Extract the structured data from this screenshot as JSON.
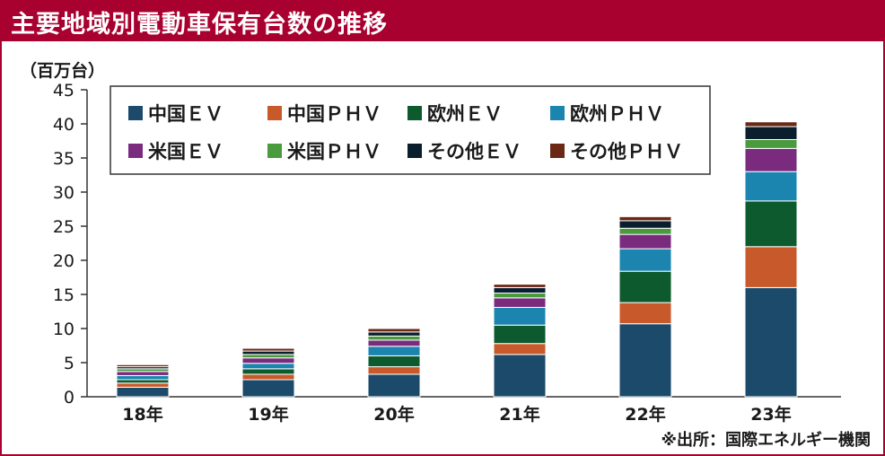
{
  "header": {
    "title": "主要地域別電動車保有台数の推移",
    "unit": "（百万台）",
    "source": "※出所：国際エネルギー機関"
  },
  "chart_data": {
    "type": "bar",
    "stacked": true,
    "title": "主要地域別電動車保有台数の推移",
    "ylabel": "（百万台）",
    "ylim": [
      0,
      45
    ],
    "yticks": [
      0,
      5,
      10,
      15,
      20,
      25,
      30,
      35,
      40,
      45
    ],
    "categories": [
      "18年",
      "19年",
      "20年",
      "21年",
      "22年",
      "23年"
    ],
    "series": [
      {
        "name": "中国ＥＶ",
        "color": "#1c4a6b",
        "values": [
          1.4,
          2.5,
          3.3,
          6.2,
          10.7,
          16.0
        ]
      },
      {
        "name": "中国ＰＨＶ",
        "color": "#c8592a",
        "values": [
          0.6,
          0.8,
          1.1,
          1.6,
          3.1,
          6.0
        ]
      },
      {
        "name": "欧州ＥＶ",
        "color": "#0d5a2e",
        "values": [
          0.5,
          0.8,
          1.6,
          2.7,
          4.6,
          6.7
        ]
      },
      {
        "name": "欧州ＰＨＶ",
        "color": "#1b85b0",
        "values": [
          0.6,
          0.8,
          1.4,
          2.6,
          3.3,
          4.3
        ]
      },
      {
        "name": "米国ＥＶ",
        "color": "#7a2b7e",
        "values": [
          0.6,
          0.8,
          0.9,
          1.4,
          2.1,
          3.4
        ]
      },
      {
        "name": "米国ＰＨＶ",
        "color": "#4a9a3e",
        "values": [
          0.4,
          0.5,
          0.6,
          0.7,
          0.9,
          1.3
        ]
      },
      {
        "name": "その他ＥＶ",
        "color": "#0b1e2e",
        "values": [
          0.3,
          0.5,
          0.6,
          0.8,
          1.1,
          1.9
        ]
      },
      {
        "name": "その他ＰＨＶ",
        "color": "#6b2814",
        "values": [
          0.3,
          0.4,
          0.5,
          0.5,
          0.6,
          0.7
        ]
      }
    ]
  }
}
